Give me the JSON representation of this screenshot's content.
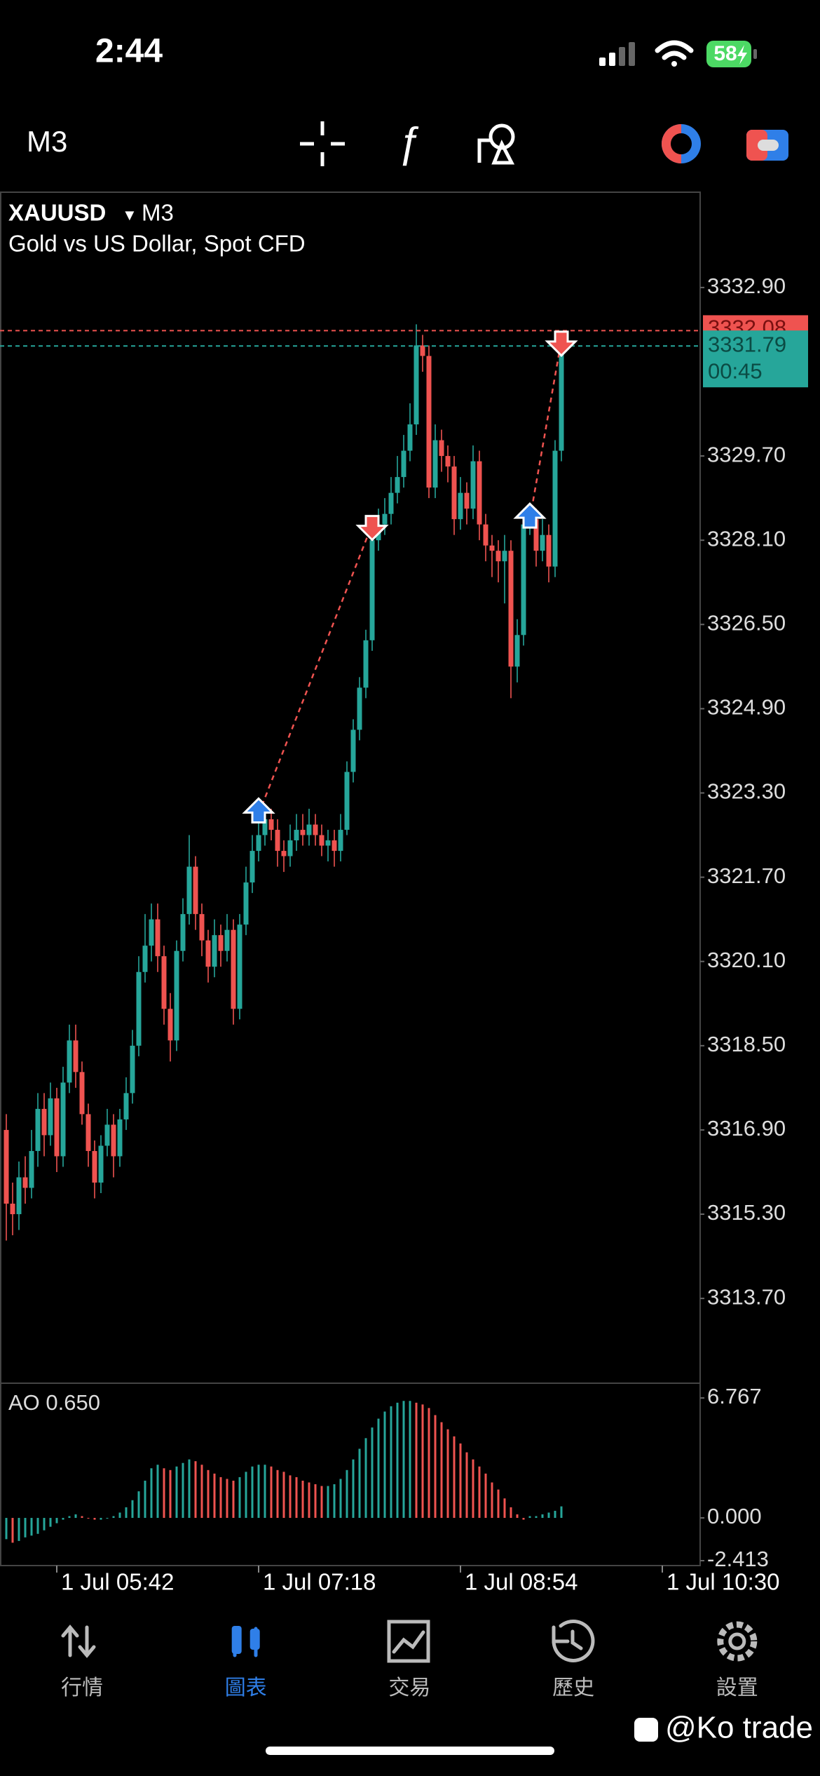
{
  "status_bar": {
    "time": "2:44",
    "battery": "58"
  },
  "toolbar": {
    "timeframe": "M3"
  },
  "chart_data": {
    "type": "candlestick",
    "symbol": "XAUUSD",
    "timeframe": "M3",
    "description": "Gold vs US Dollar, Spot CFD",
    "up_color": "#26a69a",
    "down_color": "#ef5350",
    "open": [
      3316.9,
      3315.5,
      3315.3,
      3316.0,
      3315.8,
      3316.5,
      3317.3,
      3316.8,
      3317.5,
      3316.4,
      3317.8,
      3318.6,
      3318.0,
      3317.2,
      3316.5,
      3315.9,
      3316.6,
      3317.0,
      3316.4,
      3317.1,
      3317.6,
      3318.5,
      3319.9,
      3320.4,
      3320.9,
      3320.2,
      3319.2,
      3318.6,
      3320.3,
      3321.0,
      3321.9,
      3321.0,
      3320.5,
      3320.0,
      3320.6,
      3320.3,
      3320.7,
      3319.2,
      3320.8,
      3321.6,
      3322.2,
      3322.5,
      3322.8,
      3322.6,
      3322.2,
      3322.1,
      3322.4,
      3322.6,
      3322.5,
      3322.7,
      3322.5,
      3322.3,
      3322.4,
      3322.2,
      3322.6,
      3323.7,
      3324.5,
      3325.3,
      3326.2,
      3328.1,
      3328.4,
      3328.6,
      3329.0,
      3329.3,
      3329.8,
      3330.3,
      3331.8,
      3331.6,
      3329.1,
      3330.0,
      3329.7,
      3329.5,
      3328.5,
      3329.0,
      3328.7,
      3329.6,
      3328.4,
      3328.0,
      3327.9,
      3327.7,
      3327.9,
      3325.7,
      3326.3,
      3328.4,
      3328.5,
      3327.9,
      3328.2,
      3327.6,
      3329.8
    ],
    "high": [
      3317.2,
      3315.9,
      3316.3,
      3316.4,
      3316.9,
      3317.6,
      3317.6,
      3317.8,
      3317.7,
      3318.1,
      3318.9,
      3318.9,
      3318.2,
      3317.4,
      3316.7,
      3316.8,
      3317.3,
      3317.2,
      3317.3,
      3317.9,
      3318.8,
      3320.2,
      3321.0,
      3321.2,
      3321.2,
      3320.4,
      3319.5,
      3320.5,
      3321.3,
      3322.5,
      3322.1,
      3321.2,
      3320.7,
      3320.9,
      3320.8,
      3321.0,
      3320.9,
      3321.0,
      3321.9,
      3322.5,
      3322.9,
      3323.0,
      3323.0,
      3322.8,
      3322.4,
      3322.7,
      3322.9,
      3322.9,
      3323.0,
      3322.9,
      3322.7,
      3322.6,
      3322.6,
      3322.9,
      3323.9,
      3324.7,
      3325.5,
      3326.4,
      3328.4,
      3328.7,
      3328.9,
      3329.3,
      3329.7,
      3330.1,
      3330.7,
      3332.2,
      3332.0,
      3331.8,
      3330.3,
      3330.2,
      3329.9,
      3329.7,
      3329.3,
      3329.2,
      3329.9,
      3329.8,
      3328.6,
      3328.2,
      3328.1,
      3328.2,
      3328.1,
      3326.6,
      3328.7,
      3328.8,
      3328.7,
      3328.5,
      3328.4,
      3330.0,
      3331.9
    ],
    "low": [
      3314.8,
      3314.9,
      3315.0,
      3315.5,
      3315.6,
      3316.2,
      3316.4,
      3316.6,
      3316.1,
      3316.2,
      3317.6,
      3317.7,
      3317.0,
      3316.2,
      3315.6,
      3315.7,
      3316.4,
      3316.0,
      3316.2,
      3316.9,
      3317.4,
      3318.3,
      3319.7,
      3320.1,
      3319.9,
      3318.9,
      3318.2,
      3318.4,
      3320.1,
      3320.8,
      3320.7,
      3320.2,
      3319.7,
      3319.8,
      3320.0,
      3320.1,
      3318.9,
      3319.0,
      3320.6,
      3321.4,
      3322.0,
      3322.3,
      3322.4,
      3321.9,
      3321.8,
      3321.9,
      3322.2,
      3322.3,
      3322.3,
      3322.3,
      3322.1,
      3322.0,
      3321.9,
      3322.0,
      3322.5,
      3323.5,
      3324.3,
      3325.1,
      3326.0,
      3327.9,
      3328.2,
      3328.4,
      3328.8,
      3329.1,
      3329.6,
      3330.1,
      3331.3,
      3328.9,
      3328.9,
      3329.4,
      3329.2,
      3328.2,
      3328.3,
      3328.4,
      3328.5,
      3328.1,
      3327.7,
      3327.4,
      3327.3,
      3326.9,
      3325.1,
      3325.4,
      3326.1,
      3328.2,
      3327.6,
      3327.7,
      3327.3,
      3327.4,
      3329.6
    ],
    "close": [
      3315.5,
      3315.3,
      3316.0,
      3315.8,
      3316.5,
      3317.3,
      3316.8,
      3317.5,
      3316.4,
      3317.8,
      3318.6,
      3318.0,
      3317.2,
      3316.5,
      3315.9,
      3316.6,
      3317.0,
      3316.4,
      3317.1,
      3317.6,
      3318.5,
      3319.9,
      3320.4,
      3320.9,
      3320.2,
      3319.2,
      3318.6,
      3320.3,
      3321.0,
      3321.9,
      3321.0,
      3320.5,
      3320.0,
      3320.6,
      3320.3,
      3320.7,
      3319.2,
      3320.8,
      3321.6,
      3322.2,
      3322.5,
      3322.8,
      3322.6,
      3322.2,
      3322.1,
      3322.4,
      3322.6,
      3322.5,
      3322.7,
      3322.5,
      3322.3,
      3322.4,
      3322.2,
      3322.6,
      3323.7,
      3324.5,
      3325.3,
      3326.2,
      3328.1,
      3328.4,
      3328.6,
      3329.0,
      3329.3,
      3329.8,
      3330.3,
      3331.8,
      3331.6,
      3329.1,
      3330.0,
      3329.7,
      3329.5,
      3328.5,
      3329.0,
      3328.7,
      3329.6,
      3328.4,
      3328.0,
      3327.9,
      3327.7,
      3327.9,
      3325.7,
      3326.3,
      3328.4,
      3328.5,
      3327.9,
      3328.2,
      3327.6,
      3329.8,
      3331.79
    ],
    "ylim": [
      3312.09,
      3334.71
    ],
    "yticks": [
      {
        "value": 3332.9,
        "label": "3332.90"
      },
      {
        "value": 3329.7,
        "label": "3329.70"
      },
      {
        "value": 3328.1,
        "label": "3328.10"
      },
      {
        "value": 3326.5,
        "label": "3326.50"
      },
      {
        "value": 3324.9,
        "label": "3324.90"
      },
      {
        "value": 3323.3,
        "label": "3323.30"
      },
      {
        "value": 3321.7,
        "label": "3321.70"
      },
      {
        "value": 3320.1,
        "label": "3320.10"
      },
      {
        "value": 3318.5,
        "label": "3318.50"
      },
      {
        "value": 3316.9,
        "label": "3316.90"
      },
      {
        "value": 3315.3,
        "label": "3315.30"
      },
      {
        "value": 3313.7,
        "label": "3313.70"
      }
    ],
    "xlim": [
      -1,
      110
    ],
    "xticks": [
      {
        "value": 8,
        "label": "1 Jul 05:42"
      },
      {
        "value": 40,
        "label": "1 Jul 07:18"
      },
      {
        "value": 72,
        "label": "1 Jul 08:54"
      },
      {
        "value": 104,
        "label": "1 Jul 10:30"
      }
    ],
    "ask": {
      "value": 3332.08,
      "label": "3332.08",
      "color": "#ef5350"
    },
    "bid": {
      "value": 3331.79,
      "label": "3331.79",
      "countdown": "00:45",
      "color": "#26a69a"
    },
    "trades": [
      {
        "index": 40,
        "price": 3322.9,
        "color": "#2f7fe8",
        "direction": "up"
      },
      {
        "index": 58,
        "price": 3328.4,
        "color": "#ef5350",
        "direction": "down"
      },
      {
        "index": 83,
        "price": 3328.5,
        "color": "#2f7fe8",
        "direction": "up"
      },
      {
        "index": 88,
        "price": 3331.9,
        "color": "#ef5350",
        "direction": "down"
      }
    ],
    "indicator": {
      "title": "AO 0.650",
      "up_color": "#26a69a",
      "down_color": "#ef5350",
      "values": [
        -1.2,
        -1.4,
        -1.3,
        -1.1,
        -1.0,
        -0.9,
        -0.7,
        -0.5,
        -0.3,
        -0.1,
        0.1,
        0.2,
        0.1,
        0.0,
        -0.1,
        -0.1,
        0.0,
        0.1,
        0.3,
        0.6,
        1.0,
        1.5,
        2.1,
        2.8,
        3.0,
        2.8,
        2.7,
        2.9,
        3.1,
        3.3,
        3.2,
        3.0,
        2.7,
        2.5,
        2.3,
        2.2,
        2.1,
        2.3,
        2.6,
        2.9,
        3.0,
        3.0,
        2.9,
        2.7,
        2.6,
        2.4,
        2.3,
        2.1,
        2.0,
        1.9,
        1.8,
        1.8,
        1.9,
        2.2,
        2.7,
        3.3,
        3.9,
        4.5,
        5.1,
        5.6,
        6.0,
        6.3,
        6.5,
        6.6,
        6.6,
        6.5,
        6.4,
        6.2,
        5.8,
        5.4,
        5.0,
        4.6,
        4.2,
        3.7,
        3.3,
        2.9,
        2.5,
        2.0,
        1.6,
        1.1,
        0.6,
        0.2,
        -0.1,
        0.1,
        0.1,
        0.2,
        0.3,
        0.4,
        0.65
      ],
      "ylim": [
        -2.69,
        7.6
      ],
      "yticks": [
        6.767,
        {
          "value": 0,
          "label": "0.000"
        },
        -2.413
      ]
    }
  },
  "tabs": [
    {
      "label": "行情"
    },
    {
      "label": "圖表"
    },
    {
      "label": "交易"
    },
    {
      "label": "歷史"
    },
    {
      "label": "設置"
    }
  ],
  "active_tab": 1,
  "watermark": "@Ko trade"
}
